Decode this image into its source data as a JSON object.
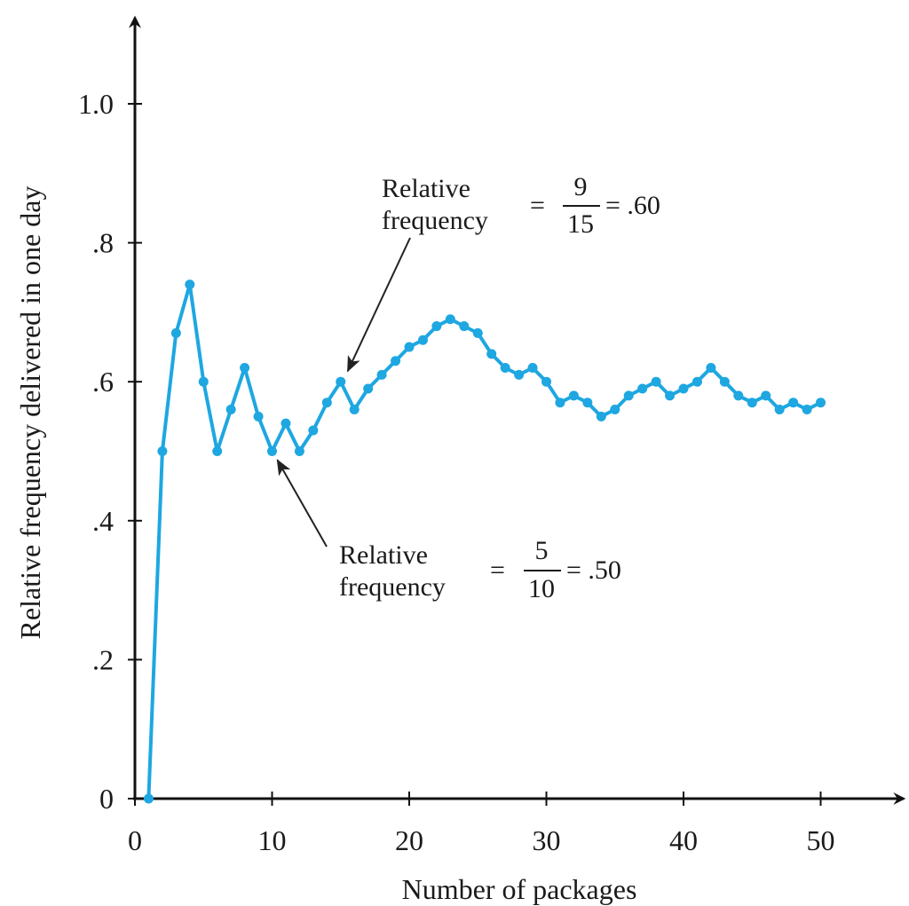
{
  "chart_data": {
    "type": "line",
    "xlabel": "Number of packages",
    "ylabel": "Relative frequency delivered in one day",
    "xlim": [
      0,
      55
    ],
    "ylim": [
      0,
      1.1
    ],
    "x_ticks": [
      0,
      10,
      20,
      30,
      40,
      50
    ],
    "x_tick_labels": [
      "0",
      "10",
      "20",
      "30",
      "40",
      "50"
    ],
    "y_ticks": [
      0,
      0.2,
      0.4,
      0.6,
      0.8,
      1.0
    ],
    "y_tick_labels": [
      "0",
      ".2",
      ".4",
      ".6",
      ".8",
      "1.0"
    ],
    "grid": false,
    "line_color": "#1ea7e1",
    "series": [
      {
        "x": [
          1,
          2,
          3,
          4,
          5,
          6,
          7,
          8,
          9,
          10,
          11,
          12,
          13,
          14,
          15,
          16,
          17,
          18,
          19,
          20,
          21,
          22,
          23,
          24,
          25,
          26,
          27,
          28,
          29,
          30,
          31,
          32,
          33,
          34,
          35,
          36,
          37,
          38,
          39,
          40,
          41,
          42,
          43,
          44,
          45,
          46,
          47,
          48,
          49,
          50
        ],
        "values": [
          0,
          0.5,
          0.67,
          0.74,
          0.6,
          0.5,
          0.56,
          0.62,
          0.55,
          0.5,
          0.54,
          0.5,
          0.53,
          0.57,
          0.6,
          0.56,
          0.59,
          0.61,
          0.63,
          0.65,
          0.66,
          0.68,
          0.69,
          0.68,
          0.67,
          0.64,
          0.62,
          0.61,
          0.62,
          0.6,
          0.57,
          0.58,
          0.57,
          0.55,
          0.56,
          0.58,
          0.59,
          0.6,
          0.58,
          0.59,
          0.6,
          0.62,
          0.6,
          0.58,
          0.57,
          0.58,
          0.56,
          0.57,
          0.56,
          0.57
        ]
      }
    ],
    "annotations": [
      {
        "label": "Relative frequency",
        "label_line1": "Relative",
        "label_line2": "frequency",
        "equals": "=",
        "numerator": "9",
        "denominator": "15",
        "result": "= .60",
        "target_x": 15,
        "target_y": 0.6
      },
      {
        "label": "Relative frequency",
        "label_line1": "Relative",
        "label_line2": "frequency",
        "equals": "=",
        "numerator": "5",
        "denominator": "10",
        "result": "= .50",
        "target_x": 10,
        "target_y": 0.5
      }
    ]
  }
}
